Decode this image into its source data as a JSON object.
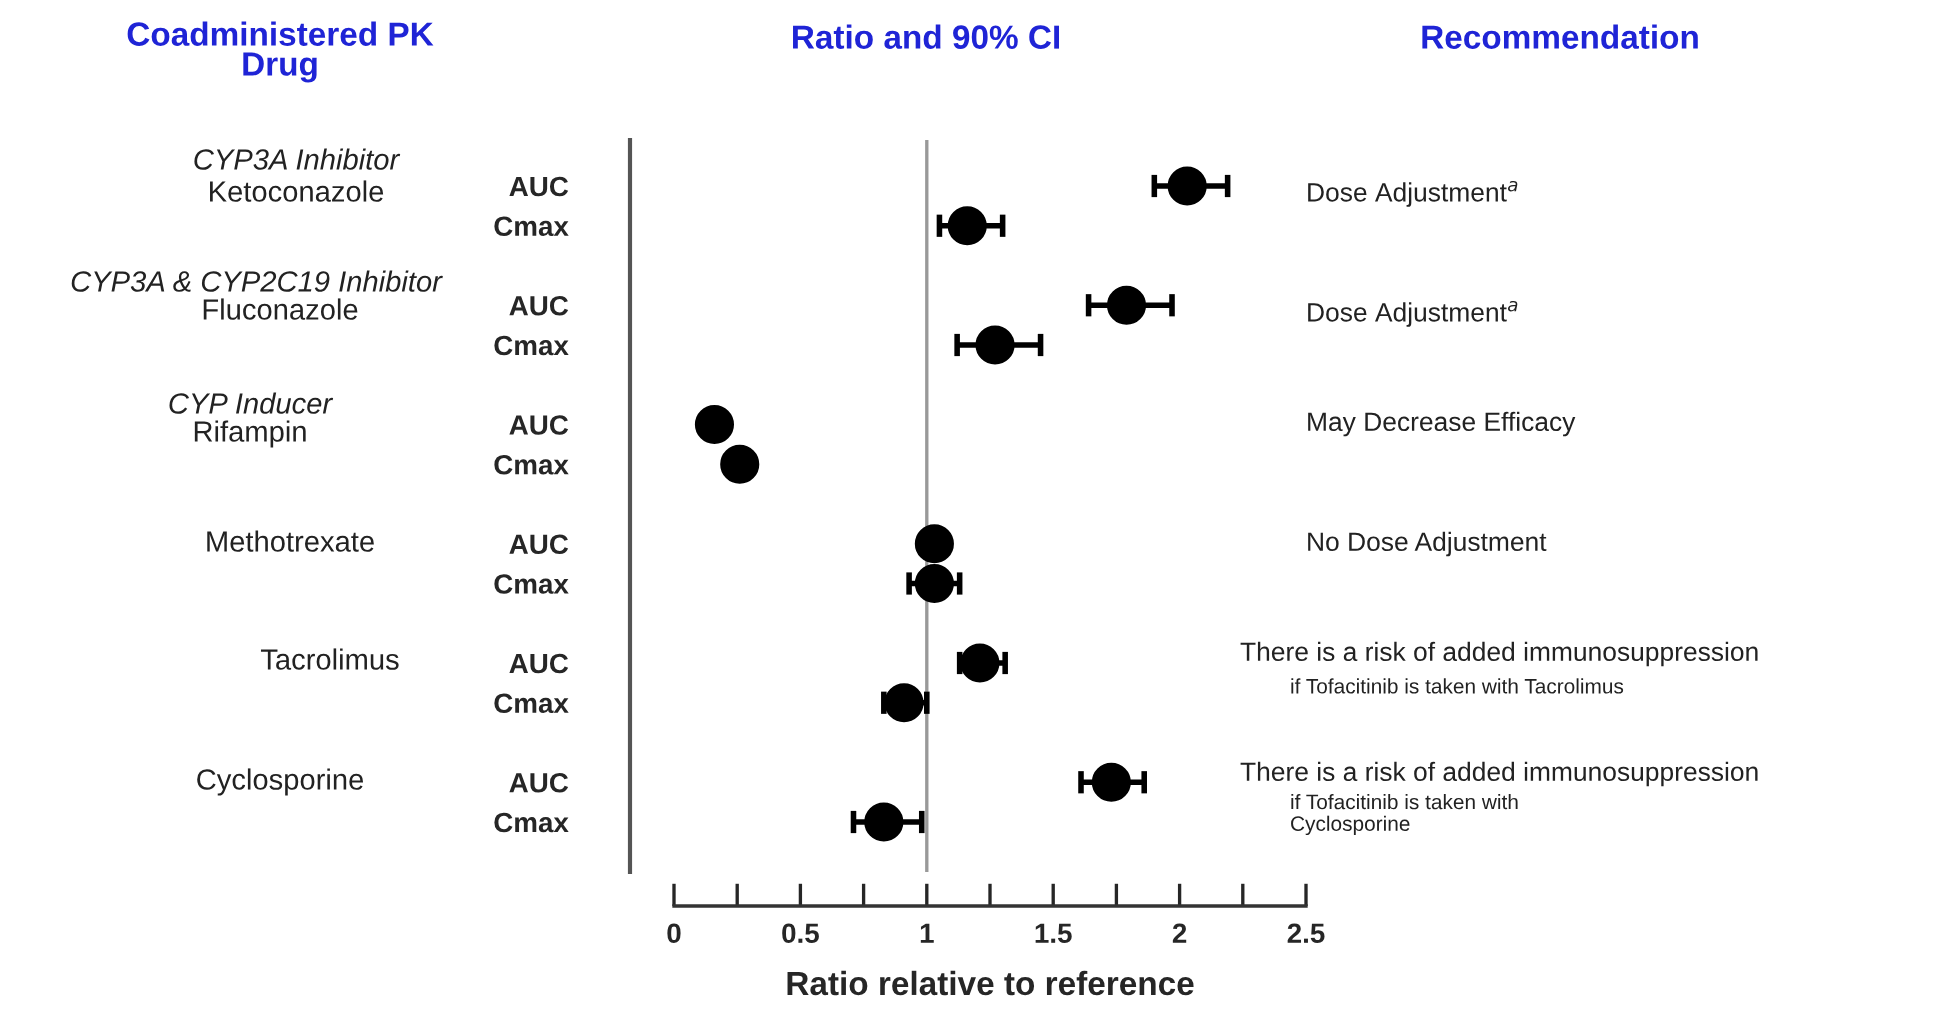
{
  "chart_data": {
    "type": "scatter",
    "orientation": "horizontal",
    "title": "Ratio and 90% CI",
    "xlabel": "Ratio relative to reference",
    "categories": [
      "AUC",
      "Cmax",
      "AUC",
      "Cmax",
      "AUC",
      "Cmax",
      "AUC",
      "Cmax",
      "AUC",
      "Cmax",
      "AUC",
      "Cmax"
    ],
    "series": [
      {
        "color": "#000000",
        "values": [
          2.03,
          1.16,
          1.79,
          1.27,
          0.16,
          0.26,
          1.03,
          1.03,
          1.21,
          0.91,
          1.73,
          0.83
        ],
        "errors": [
          [
            1.9,
            2.19
          ],
          [
            1.05,
            1.3
          ],
          [
            1.64,
            1.97
          ],
          [
            1.12,
            1.45
          ],
          null,
          null,
          null,
          [
            0.93,
            1.13
          ],
          [
            1.13,
            1.31
          ],
          [
            0.83,
            1.0
          ],
          [
            1.61,
            1.86
          ],
          [
            0.71,
            0.98
          ]
        ]
      }
    ],
    "xlim": [
      0,
      2.5
    ],
    "xticks": [
      0,
      {
        "value": 0.25,
        "label": null
      },
      0.5,
      {
        "value": 0.75,
        "label": null
      },
      1,
      {
        "value": 1.25,
        "label": null
      },
      1.5,
      {
        "value": 1.75,
        "label": null
      },
      2,
      {
        "value": 2.25,
        "label": null
      },
      2.5
    ],
    "ref_lines": [
      {
        "axis": "x",
        "value": 1,
        "color": "#999999"
      }
    ],
    "marker": "circle",
    "grid": false,
    "annotations": [
      "Coadministered PK\nDrug",
      "Recommendation",
      "CYP3A Inhibitor",
      "Ketoconazole",
      "CYP3A & CYP2C19 Inhibitor",
      "Fluconazole",
      "CYP Inducer",
      "Rifampin",
      "Methotrexate",
      "Tacrolimus",
      "Cyclosporine",
      "Dose Adjustment$^{a}$",
      "Dose Adjustment$^{a}$",
      "May Decrease Efficacy",
      "No Dose Adjustment",
      "There is a risk of added immunosuppression",
      "if Tofacitinib is taken with Tacrolimus",
      "There is a risk of added immunosuppression",
      "if Tofacitinib is taken with\nCyclosporine"
    ]
  }
}
